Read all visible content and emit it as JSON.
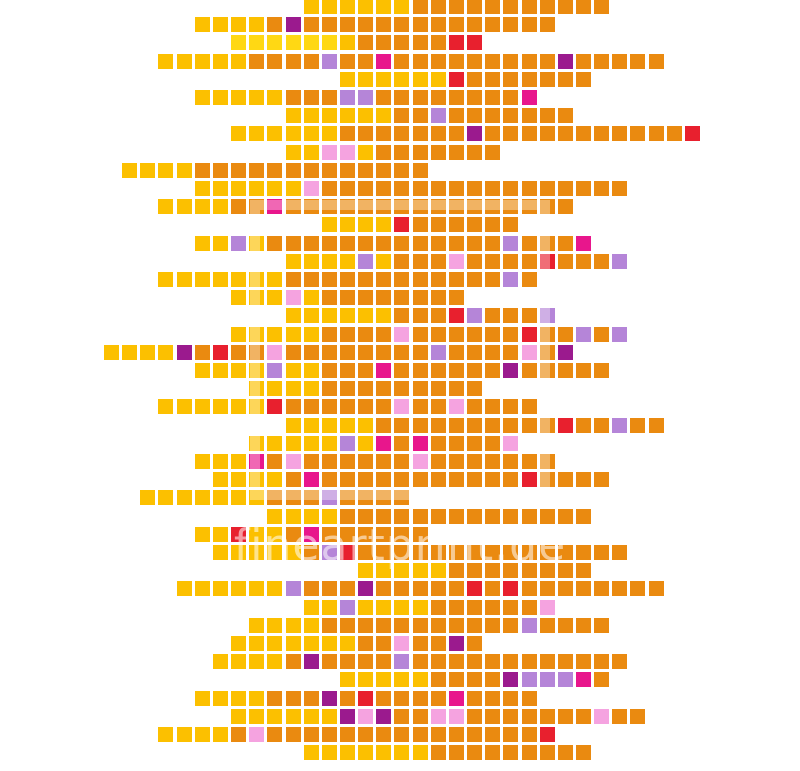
{
  "watermark": "fineartprint.de",
  "colors": {
    "background": "#ffffff",
    "yellow": "#fcc000",
    "light_yellow": "#ffd814",
    "orange": "#ea8a10",
    "pink": "#f5a3e0",
    "lavender": "#b585d8",
    "magenta": "#e8168c",
    "purple": "#9b1a8e",
    "red": "#e8202e"
  }
}
